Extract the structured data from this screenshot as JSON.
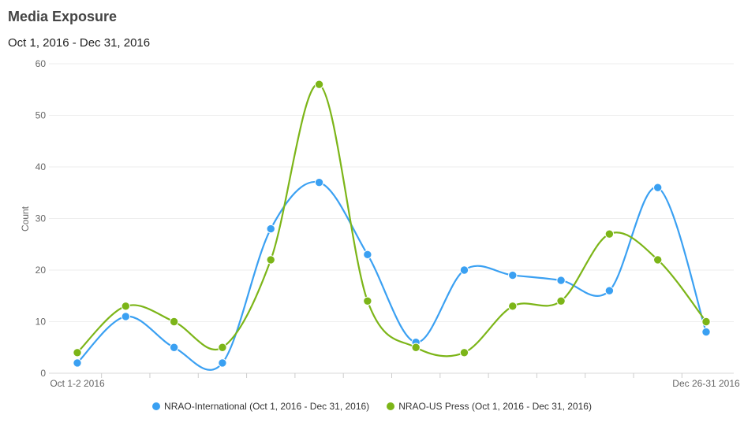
{
  "chart_data": {
    "type": "line",
    "title": "Media Exposure",
    "subtitle": "Oct 1, 2016 - Dec 31, 2016",
    "ylabel": "Count",
    "ylim": [
      0,
      60
    ],
    "yticks": [
      0,
      10,
      20,
      30,
      40,
      50,
      60
    ],
    "x_points": 14,
    "x_tick_labels": [
      {
        "index": 0,
        "text": "Oct 1-2 2016"
      },
      {
        "index": 13,
        "text": "Dec 26-31 2016"
      }
    ],
    "grid": true,
    "legend_position": "bottom",
    "series": [
      {
        "name": "NRAO-International (Oct 1, 2016 - Dec 31, 2016)",
        "color": "#3aa0f2",
        "values": [
          2,
          11,
          5,
          2,
          28,
          37,
          23,
          6,
          20,
          19,
          18,
          16,
          36,
          8
        ]
      },
      {
        "name": "NRAO-US Press (Oct 1, 2016 - Dec 31, 2016)",
        "color": "#7cb518",
        "values": [
          4,
          13,
          10,
          5,
          22,
          56,
          14,
          5,
          4,
          13,
          14,
          27,
          22,
          10
        ]
      }
    ]
  }
}
